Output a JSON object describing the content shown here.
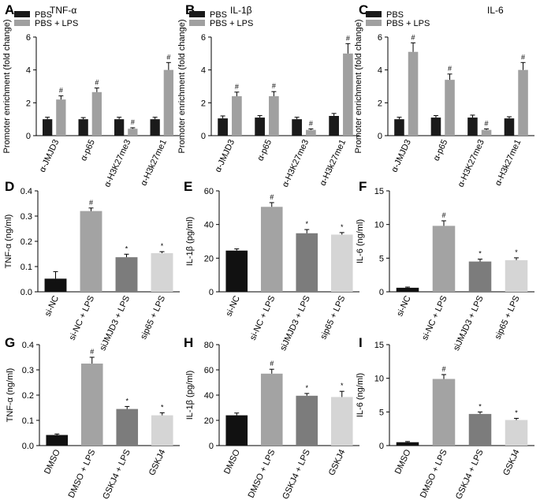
{
  "colors": {
    "pbs": "#1a1a1a",
    "pbs_lps": "#a0a0a0",
    "black_bar": "#111111",
    "gray_bar": "#a3a3a3",
    "dark_gray_bar": "#7c7c7c",
    "light_gray_bar": "#d5d5d5",
    "axis": "#000000"
  },
  "chart_data": [
    {
      "letter": "A",
      "type": "bar",
      "title": "TNF-α",
      "ylabel": "Promoter enrichment (fold change)",
      "xlabel": "",
      "ylim": [
        0,
        6
      ],
      "yticks": [
        "0",
        "2",
        "4",
        "6"
      ],
      "grid": false,
      "legend": [
        "PBS",
        "PBS + LPS"
      ],
      "legend_position": "top",
      "categories": [
        "α-JMJD3",
        "α-p65",
        "α-H3K27me3",
        "α-H3k27me1"
      ],
      "series": [
        {
          "name": "PBS",
          "values": [
            1.0,
            1.0,
            1.0,
            1.0
          ],
          "errors": [
            0.12,
            0.1,
            0.12,
            0.12
          ],
          "sig": [
            "",
            "",
            "",
            ""
          ]
        },
        {
          "name": "PBS + LPS",
          "values": [
            2.2,
            2.65,
            0.42,
            4.0
          ],
          "errors": [
            0.22,
            0.25,
            0.06,
            0.45
          ],
          "sig": [
            "#",
            "#",
            "#",
            "#"
          ]
        }
      ]
    },
    {
      "letter": "B",
      "type": "bar",
      "title": "IL-1β",
      "ylabel": "Promoter enrichment (fold change)",
      "xlabel": "",
      "ylim": [
        0,
        6
      ],
      "yticks": [
        "0",
        "2",
        "4",
        "6"
      ],
      "grid": false,
      "legend": [
        "PBS",
        "PBS + LPS"
      ],
      "legend_position": "top",
      "categories": [
        "α-JMJD3",
        "α-p65",
        "α-H3K27me3",
        "α-H3k27me1"
      ],
      "series": [
        {
          "name": "PBS",
          "values": [
            1.05,
            1.1,
            1.0,
            1.2
          ],
          "errors": [
            0.15,
            0.12,
            0.12,
            0.15
          ],
          "sig": [
            "",
            "",
            "",
            ""
          ]
        },
        {
          "name": "PBS + LPS",
          "values": [
            2.4,
            2.4,
            0.35,
            5.0
          ],
          "errors": [
            0.25,
            0.28,
            0.06,
            0.6
          ],
          "sig": [
            "#",
            "#",
            "#",
            "#"
          ]
        }
      ]
    },
    {
      "letter": "C",
      "type": "bar",
      "title": "IL-6",
      "ylabel": "Promoter enrichment (fold change)",
      "xlabel": "",
      "ylim": [
        0,
        6
      ],
      "yticks": [
        "0",
        "2",
        "4",
        "6"
      ],
      "grid": false,
      "legend": [
        "PBS",
        "PBS + LPS"
      ],
      "legend_position": "top",
      "categories": [
        "α-JMJD3",
        "α-p65",
        "α-H3K27me3",
        "α-H3k27me1"
      ],
      "series": [
        {
          "name": "PBS",
          "values": [
            1.0,
            1.1,
            1.1,
            1.05
          ],
          "errors": [
            0.12,
            0.12,
            0.15,
            0.1
          ],
          "sig": [
            "",
            "",
            "",
            ""
          ]
        },
        {
          "name": "PBS + LPS",
          "values": [
            5.1,
            3.4,
            0.35,
            4.0
          ],
          "errors": [
            0.55,
            0.35,
            0.06,
            0.45
          ],
          "sig": [
            "#",
            "#",
            "#",
            "#"
          ]
        }
      ]
    },
    {
      "letter": "D",
      "type": "bar",
      "title": "",
      "ylabel": "TNF-α (ng/ml)",
      "xlabel": "",
      "ylim": [
        0,
        0.4
      ],
      "yticks": [
        "0.0",
        "0.1",
        "0.2",
        "0.3",
        "0.4"
      ],
      "grid": false,
      "categories": [
        "si-NC",
        "si-NC + LPS",
        "siJMJD3 + LPS",
        "sip65 + LPS"
      ],
      "values": [
        0.052,
        0.32,
        0.137,
        0.153
      ],
      "errors": [
        0.028,
        0.012,
        0.012,
        0.006
      ],
      "sig": [
        "",
        "#",
        "*",
        "*"
      ],
      "bar_colors": [
        "#111111",
        "#a3a3a3",
        "#7c7c7c",
        "#d5d5d5"
      ]
    },
    {
      "letter": "E",
      "type": "bar",
      "title": "",
      "ylabel": "IL-1β (pg/ml)",
      "xlabel": "",
      "ylim": [
        0,
        60
      ],
      "yticks": [
        "0",
        "20",
        "40",
        "60"
      ],
      "grid": false,
      "categories": [
        "si-NC",
        "si-NC + LPS",
        "siJMJD3 + LPS",
        "sip65 + LPS"
      ],
      "values": [
        24.5,
        50.5,
        34.8,
        34.0
      ],
      "errors": [
        1.0,
        2.5,
        2.2,
        1.2
      ],
      "sig": [
        "",
        "#",
        "*",
        "*"
      ],
      "bar_colors": [
        "#111111",
        "#a3a3a3",
        "#7c7c7c",
        "#d5d5d5"
      ]
    },
    {
      "letter": "F",
      "type": "bar",
      "title": "",
      "ylabel": "IL-6 (ng/ml)",
      "xlabel": "",
      "ylim": [
        0,
        15
      ],
      "yticks": [
        "0",
        "5",
        "10",
        "15"
      ],
      "grid": false,
      "categories": [
        "si-NC",
        "si-NC + LPS",
        "siJMJD3 + LPS",
        "sip65 + LPS"
      ],
      "values": [
        0.6,
        9.8,
        4.5,
        4.7
      ],
      "errors": [
        0.1,
        0.75,
        0.35,
        0.35
      ],
      "sig": [
        "",
        "#",
        "*",
        "*"
      ],
      "bar_colors": [
        "#111111",
        "#a3a3a3",
        "#7c7c7c",
        "#d5d5d5"
      ]
    },
    {
      "letter": "G",
      "type": "bar",
      "title": "",
      "ylabel": "TNF-α (ng/ml)",
      "xlabel": "",
      "ylim": [
        0,
        0.4
      ],
      "yticks": [
        "0.0",
        "0.1",
        "0.2",
        "0.3",
        "0.4"
      ],
      "grid": false,
      "categories": [
        "DMSO",
        "DMSO + LPS",
        "GSKJ4 + LPS",
        "GSKJ4"
      ],
      "values": [
        0.042,
        0.325,
        0.145,
        0.12
      ],
      "errors": [
        0.004,
        0.025,
        0.01,
        0.01
      ],
      "sig": [
        "",
        "#",
        "*",
        "*"
      ],
      "bar_colors": [
        "#111111",
        "#a3a3a3",
        "#7c7c7c",
        "#d5d5d5"
      ]
    },
    {
      "letter": "H",
      "type": "bar",
      "title": "",
      "ylabel": "IL-1β (pg/ml)",
      "xlabel": "",
      "ylim": [
        0,
        80
      ],
      "yticks": [
        "0",
        "20",
        "40",
        "60",
        "80"
      ],
      "grid": false,
      "categories": [
        "DMSO",
        "DMSO + LPS",
        "GSKJ4 + LPS",
        "GSKJ4"
      ],
      "values": [
        24.0,
        57.0,
        39.5,
        38.5
      ],
      "errors": [
        1.8,
        3.5,
        1.8,
        4.5
      ],
      "sig": [
        "",
        "#",
        "*",
        "*"
      ],
      "bar_colors": [
        "#111111",
        "#a3a3a3",
        "#7c7c7c",
        "#d5d5d5"
      ]
    },
    {
      "letter": "I",
      "type": "bar",
      "title": "",
      "ylabel": "IL-6 (ng/ml)",
      "xlabel": "",
      "ylim": [
        0,
        15
      ],
      "yticks": [
        "0",
        "5",
        "10",
        "15"
      ],
      "grid": false,
      "categories": [
        "DMSO",
        "DMSO + LPS",
        "GSKJ4 + LPS",
        "GSKJ4"
      ],
      "values": [
        0.5,
        9.9,
        4.7,
        3.8
      ],
      "errors": [
        0.1,
        0.65,
        0.3,
        0.25
      ],
      "sig": [
        "",
        "#",
        "*",
        "*"
      ],
      "bar_colors": [
        "#111111",
        "#a3a3a3",
        "#7c7c7c",
        "#d5d5d5"
      ]
    }
  ]
}
